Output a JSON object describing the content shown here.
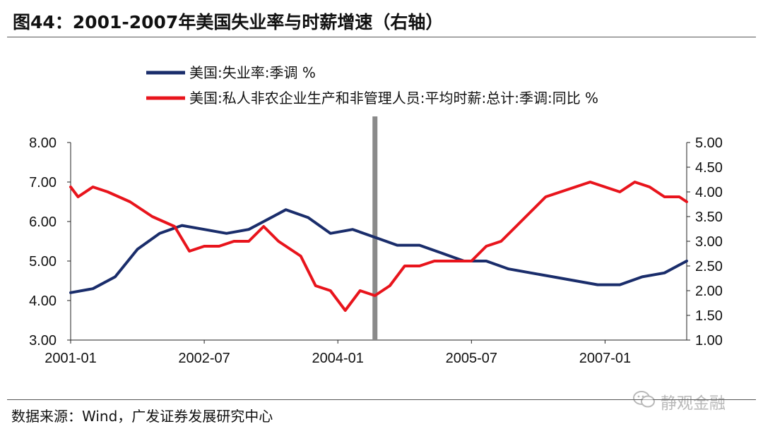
{
  "title": "图44：2001-2007年美国失业率与时薪增速（右轴）",
  "source": "数据来源：Wind，广发证券发展研究中心",
  "watermark": "静观金融",
  "chart_data": {
    "type": "line",
    "x_tick_labels": [
      "2001-01",
      "2002-07",
      "2004-01",
      "2005-07",
      "2007-01"
    ],
    "y_left": {
      "ticks": [
        "3.00",
        "4.00",
        "5.00",
        "6.00",
        "7.00",
        "8.00"
      ],
      "range": [
        3,
        8
      ]
    },
    "y_right": {
      "ticks": [
        "1.00",
        "1.50",
        "2.00",
        "2.50",
        "3.00",
        "3.50",
        "4.00",
        "4.50",
        "5.00"
      ],
      "range": [
        1,
        5
      ]
    },
    "x_range": [
      "2001-01",
      "2007-12"
    ],
    "vertical_marker": "2004-06",
    "grid": false,
    "legend_position": "top",
    "series": [
      {
        "name": "美国:失业率:季调 %",
        "axis": "left",
        "color": "#1a2d6b",
        "points": [
          [
            "2001-01",
            4.2
          ],
          [
            "2001-04",
            4.3
          ],
          [
            "2001-07",
            4.6
          ],
          [
            "2001-10",
            5.3
          ],
          [
            "2002-01",
            5.7
          ],
          [
            "2002-04",
            5.9
          ],
          [
            "2002-07",
            5.8
          ],
          [
            "2002-10",
            5.7
          ],
          [
            "2003-01",
            5.8
          ],
          [
            "2003-03",
            6.0
          ],
          [
            "2003-06",
            6.3
          ],
          [
            "2003-09",
            6.1
          ],
          [
            "2003-12",
            5.7
          ],
          [
            "2004-03",
            5.8
          ],
          [
            "2004-06",
            5.6
          ],
          [
            "2004-09",
            5.4
          ],
          [
            "2004-12",
            5.4
          ],
          [
            "2005-03",
            5.2
          ],
          [
            "2005-06",
            5.0
          ],
          [
            "2005-09",
            5.0
          ],
          [
            "2005-12",
            4.8
          ],
          [
            "2006-03",
            4.7
          ],
          [
            "2006-06",
            4.6
          ],
          [
            "2006-09",
            4.5
          ],
          [
            "2006-12",
            4.4
          ],
          [
            "2007-03",
            4.4
          ],
          [
            "2007-06",
            4.6
          ],
          [
            "2007-09",
            4.7
          ],
          [
            "2007-12",
            5.0
          ]
        ]
      },
      {
        "name": "美国:私人非农企业生产和非管理人员:平均时薪:总计:季调:同比 %",
        "axis": "right",
        "color": "#e8141c",
        "points": [
          [
            "2001-01",
            4.1
          ],
          [
            "2001-02",
            3.9
          ],
          [
            "2001-04",
            4.1
          ],
          [
            "2001-06",
            4.0
          ],
          [
            "2001-09",
            3.8
          ],
          [
            "2001-12",
            3.5
          ],
          [
            "2002-03",
            3.3
          ],
          [
            "2002-05",
            2.8
          ],
          [
            "2002-07",
            2.9
          ],
          [
            "2002-09",
            2.9
          ],
          [
            "2002-11",
            3.0
          ],
          [
            "2003-01",
            3.0
          ],
          [
            "2003-03",
            3.3
          ],
          [
            "2003-05",
            3.0
          ],
          [
            "2003-08",
            2.7
          ],
          [
            "2003-10",
            2.1
          ],
          [
            "2003-12",
            2.0
          ],
          [
            "2004-02",
            1.6
          ],
          [
            "2004-04",
            2.0
          ],
          [
            "2004-06",
            1.9
          ],
          [
            "2004-08",
            2.1
          ],
          [
            "2004-10",
            2.5
          ],
          [
            "2004-12",
            2.5
          ],
          [
            "2005-02",
            2.6
          ],
          [
            "2005-04",
            2.6
          ],
          [
            "2005-07",
            2.6
          ],
          [
            "2005-09",
            2.9
          ],
          [
            "2005-11",
            3.0
          ],
          [
            "2006-01",
            3.3
          ],
          [
            "2006-03",
            3.6
          ],
          [
            "2006-05",
            3.9
          ],
          [
            "2006-07",
            4.0
          ],
          [
            "2006-09",
            4.1
          ],
          [
            "2006-11",
            4.2
          ],
          [
            "2007-01",
            4.1
          ],
          [
            "2007-03",
            4.0
          ],
          [
            "2007-05",
            4.2
          ],
          [
            "2007-07",
            4.1
          ],
          [
            "2007-09",
            3.9
          ],
          [
            "2007-11",
            3.9
          ],
          [
            "2007-12",
            3.8
          ]
        ]
      }
    ]
  }
}
